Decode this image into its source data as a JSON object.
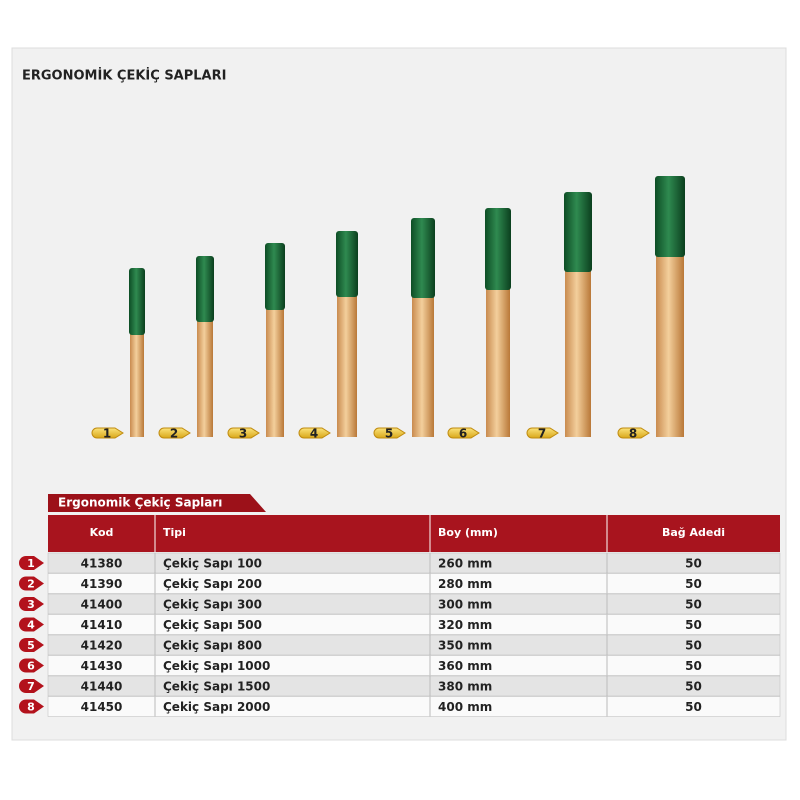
{
  "title": "ERGONOMİK ÇEKİÇ SAPLARI",
  "handles": {
    "labels": [
      "1",
      "2",
      "3",
      "4",
      "5",
      "6",
      "7",
      "8"
    ]
  },
  "table": {
    "title": "Ergonomik Çekiç Sapları",
    "header": [
      "Kod",
      "Tipi",
      "Boy (mm)",
      "Bağ Adedi"
    ],
    "rows": [
      {
        "marker": "1",
        "cells": [
          "41380",
          "Çekiç Sapı 100",
          "260 mm",
          "50"
        ]
      },
      {
        "marker": "2",
        "cells": [
          "41390",
          "Çekiç Sapı 200",
          "280 mm",
          "50"
        ]
      },
      {
        "marker": "3",
        "cells": [
          "41400",
          "Çekiç Sapı 300",
          "300 mm",
          "50"
        ]
      },
      {
        "marker": "4",
        "cells": [
          "41410",
          "Çekiç Sapı 500",
          "320 mm",
          "50"
        ]
      },
      {
        "marker": "5",
        "cells": [
          "41420",
          "Çekiç Sapı 800",
          "350 mm",
          "50"
        ]
      },
      {
        "marker": "6",
        "cells": [
          "41430",
          "Çekiç Sapı 1000",
          "360 mm",
          "50"
        ]
      },
      {
        "marker": "7",
        "cells": [
          "41440",
          "Çekiç Sapı 1500",
          "380 mm",
          "50"
        ]
      },
      {
        "marker": "8",
        "cells": [
          "41450",
          "Çekiç Sapı 2000",
          "400 mm",
          "50"
        ]
      }
    ]
  }
}
